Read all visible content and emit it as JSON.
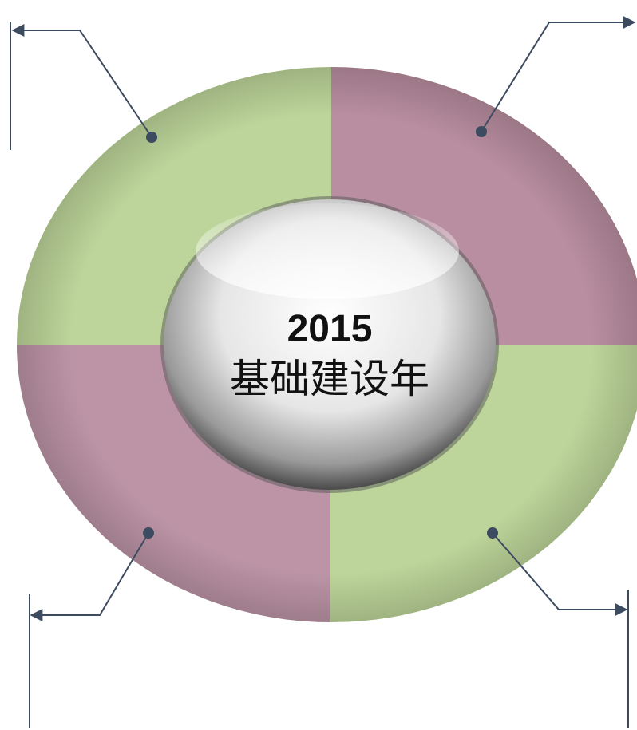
{
  "center": {
    "year": "2015",
    "label": "基础建设年"
  }
}
